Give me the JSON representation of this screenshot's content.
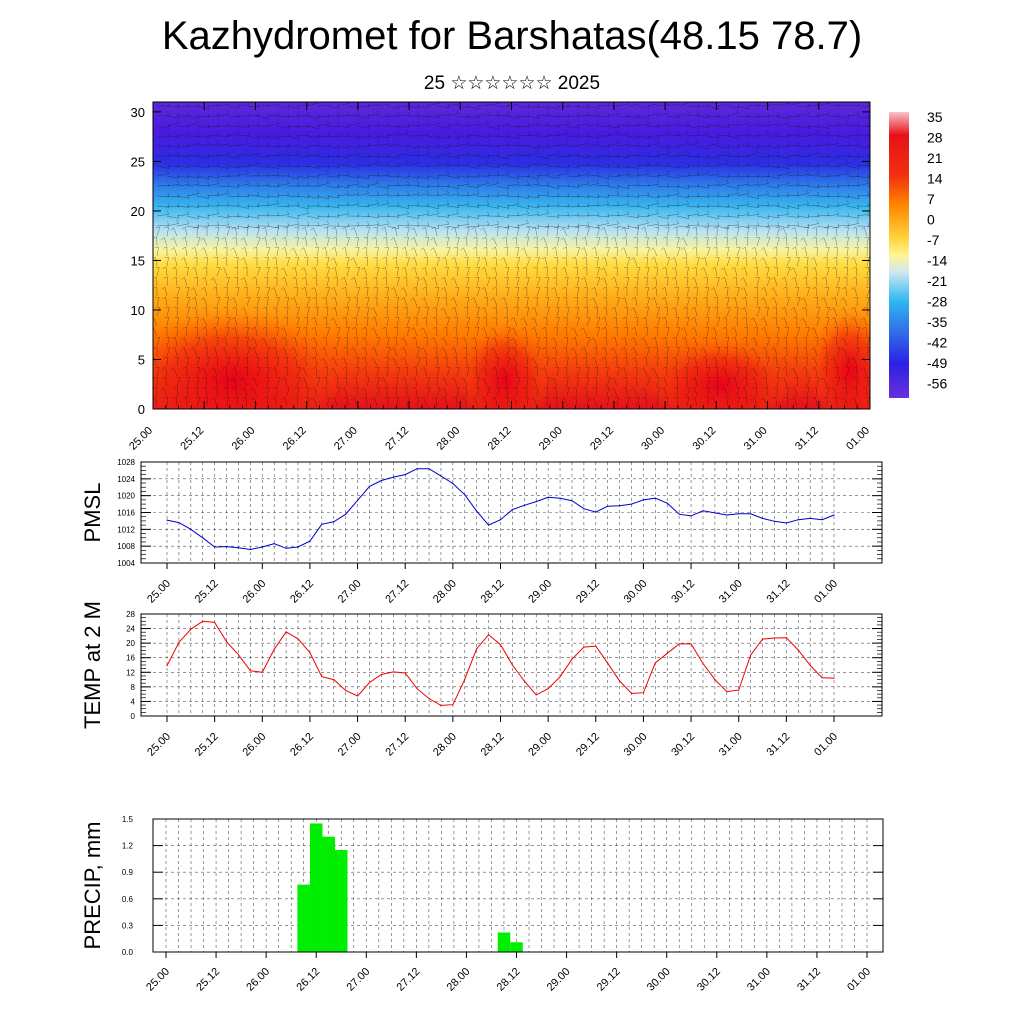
{
  "header": {
    "title": "Kazhydromet for Barshatas(48.15 78.7)",
    "subtitle": "25 ☆☆☆☆☆☆ 2025"
  },
  "time_labels": [
    "25.00",
    "25.12",
    "26.00",
    "26.12",
    "27.00",
    "27.12",
    "28.00",
    "28.12",
    "29.00",
    "29.12",
    "30.00",
    "30.12",
    "31.00",
    "31.12",
    "01.00"
  ],
  "chart_data": [
    {
      "type": "heatmap",
      "name": "vertical-cross-section",
      "ylabel": "",
      "yticks": [
        0,
        5,
        10,
        15,
        20,
        25,
        30
      ],
      "ylim": [
        0,
        31
      ],
      "colorbar_labels": [
        "35",
        "28",
        "21",
        "14",
        "7",
        "0",
        "-7",
        "-14",
        "-21",
        "-28",
        "-35",
        "-42",
        "-49",
        "-56"
      ],
      "colorbar_range": [
        -63,
        40
      ],
      "colors": {
        "hot": "#e8101a",
        "warm": "#ff8a00",
        "yellow": "#ffe24a",
        "cold": "#1fb4ee",
        "deep": "#3f10e6",
        "max": "#f7c3c8"
      }
    },
    {
      "type": "line",
      "name": "PMSL",
      "ylabel": "PMSL",
      "ylim": [
        1004,
        1028
      ],
      "yticks": [
        1004,
        1008,
        1012,
        1016,
        1020,
        1024,
        1028
      ],
      "color": "#0000cc",
      "values": [
        1014.2,
        1013.6,
        1012.0,
        1010.0,
        1007.8,
        1007.9,
        1007.6,
        1007.2,
        1007.8,
        1008.6,
        1007.5,
        1007.8,
        1009.2,
        1013.2,
        1013.8,
        1015.6,
        1018.9,
        1022.2,
        1023.6,
        1024.4,
        1025.0,
        1026.4,
        1026.4,
        1024.7,
        1022.9,
        1020.2,
        1016.3,
        1013.0,
        1014.3,
        1016.7,
        1017.7,
        1018.6,
        1019.6,
        1019.4,
        1018.8,
        1016.9,
        1016.1,
        1017.5,
        1017.6,
        1018.0,
        1019.0,
        1019.4,
        1018.2,
        1015.6,
        1015.2,
        1016.4,
        1015.9,
        1015.4,
        1015.7,
        1015.7,
        1014.6,
        1013.9,
        1013.5,
        1014.3,
        1014.6,
        1014.3,
        1015.4
      ]
    },
    {
      "type": "line",
      "name": "TEMP at 2 M",
      "ylabel": "TEMP at 2 M",
      "ylim": [
        0,
        28
      ],
      "yticks": [
        0,
        4,
        8,
        12,
        16,
        20,
        24,
        28
      ],
      "color": "#ee0000",
      "values": [
        13.8,
        20.2,
        23.8,
        26.0,
        25.7,
        20.4,
        16.8,
        12.4,
        12.0,
        18.3,
        23.1,
        21.2,
        17.4,
        10.8,
        10.0,
        7.0,
        5.5,
        9.2,
        11.4,
        12.1,
        11.8,
        7.5,
        4.8,
        2.9,
        3.1,
        10.1,
        18.5,
        22.3,
        19.6,
        14.0,
        9.6,
        5.8,
        7.5,
        10.8,
        15.6,
        18.9,
        19.2,
        14.5,
        9.6,
        6.2,
        6.4,
        14.6,
        17.2,
        19.8,
        19.8,
        14.4,
        10.0,
        6.7,
        7.1,
        16.7,
        21.1,
        21.4,
        21.5,
        18.1,
        13.9,
        10.5,
        10.4
      ]
    },
    {
      "type": "bar",
      "name": "PRECIP",
      "ylabel": "PRECIP, mm",
      "ylim": [
        0,
        1.5
      ],
      "yticks": [
        "0.0",
        "0.3",
        "0.6",
        "0.9",
        "1.2",
        "1.5"
      ],
      "color": "#00ee00",
      "x": [
        "26.09",
        "26.12",
        "26.15",
        "26.18",
        "28.09",
        "28.12"
      ],
      "values": [
        0.76,
        1.45,
        1.3,
        1.15,
        0.22,
        0.11
      ]
    }
  ]
}
